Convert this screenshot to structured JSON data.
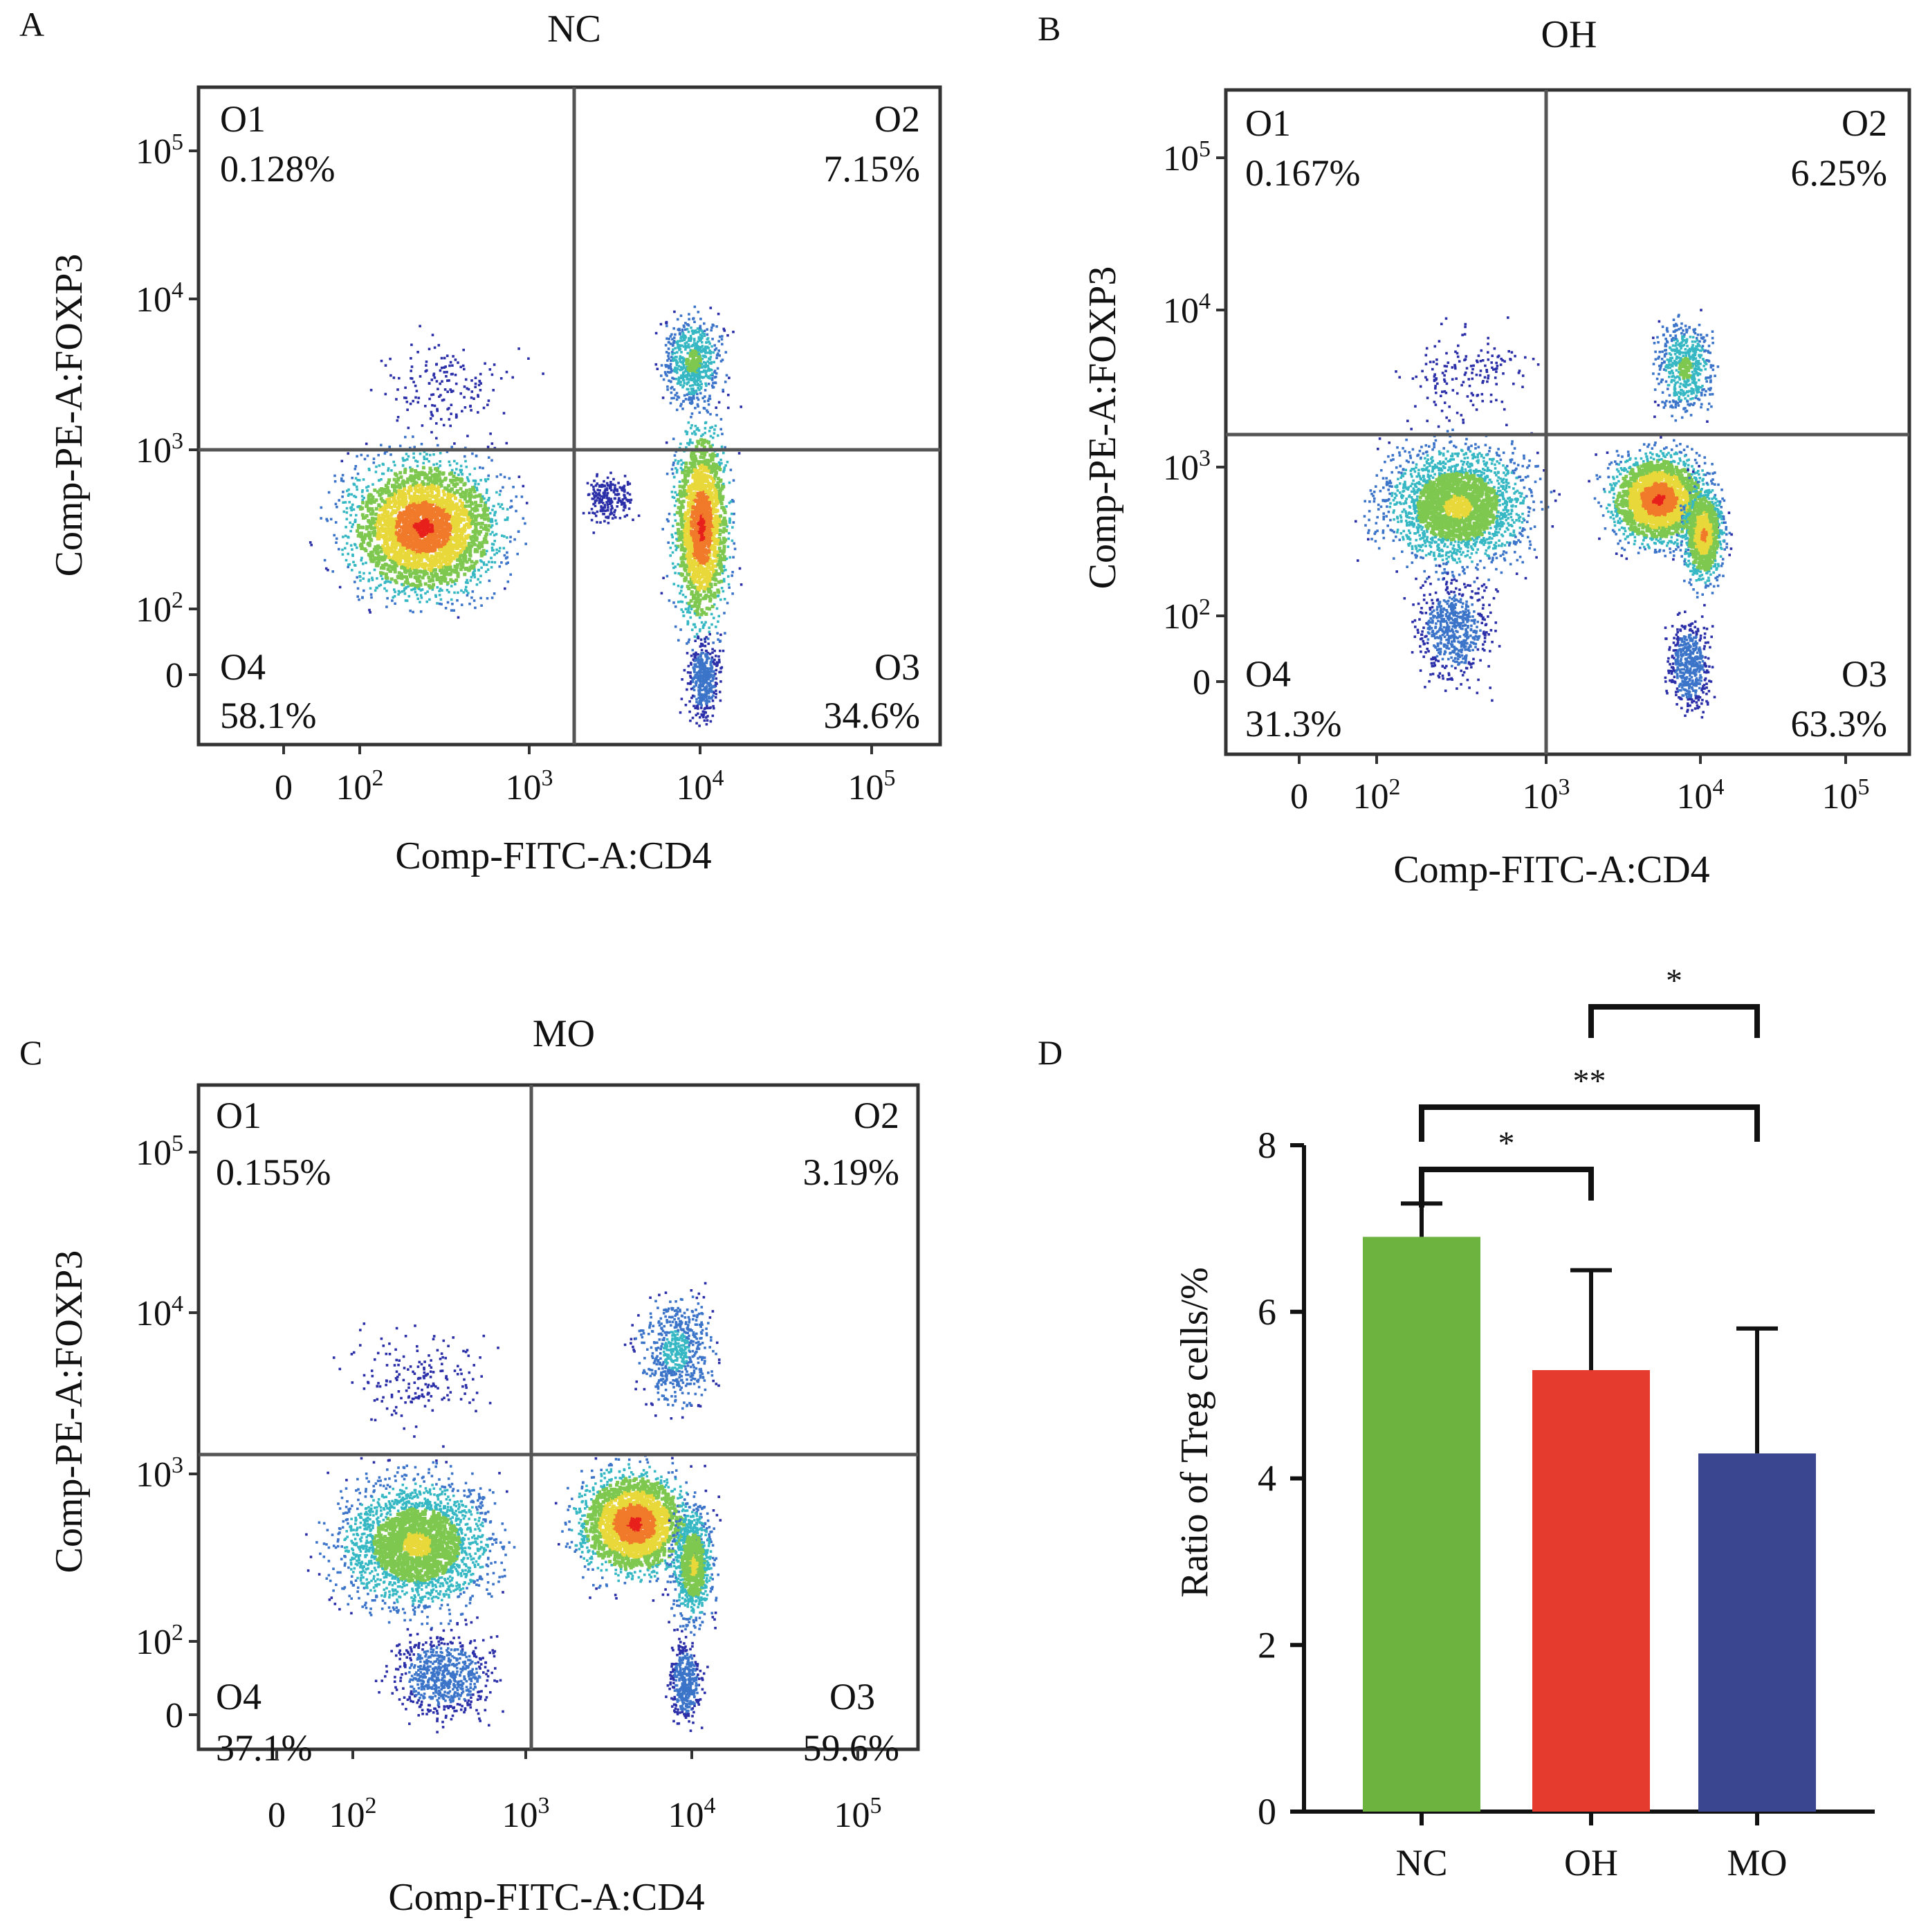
{
  "flow_panels": [
    {
      "letter": "A",
      "title": "NC",
      "ylabel": "Comp-PE-A:FOXP3",
      "xlabel": "Comp-FITC-A:CD4",
      "quadrants": [
        {
          "name": "O1",
          "value": "0.128%"
        },
        {
          "name": "O2",
          "value": "7.15%"
        },
        {
          "name": "O3",
          "value": "34.6%"
        },
        {
          "name": "O4",
          "value": "58.1%"
        }
      ]
    },
    {
      "letter": "B",
      "title": "OH",
      "ylabel": "Comp-PE-A:FOXP3",
      "xlabel": "Comp-FITC-A:CD4",
      "quadrants": [
        {
          "name": "O1",
          "value": "0.167%"
        },
        {
          "name": "O2",
          "value": "6.25%"
        },
        {
          "name": "O3",
          "value": "63.3%"
        },
        {
          "name": "O4",
          "value": "31.3%"
        }
      ]
    },
    {
      "letter": "C",
      "title": "MO",
      "ylabel": "Comp-PE-A:FOXP3",
      "xlabel": "Comp-FITC-A:CD4",
      "quadrants": [
        {
          "name": "O1",
          "value": "0.155%"
        },
        {
          "name": "O2",
          "value": "3.19%"
        },
        {
          "name": "O3",
          "value": "59.6%"
        },
        {
          "name": "O4",
          "value": "37.1%"
        }
      ]
    }
  ],
  "flow_ticks": {
    "x": [
      {
        "base": "0",
        "exp": ""
      },
      {
        "base": "10",
        "exp": "2"
      },
      {
        "base": "10",
        "exp": "3"
      },
      {
        "base": "10",
        "exp": "4"
      },
      {
        "base": "10",
        "exp": "5"
      }
    ],
    "y": [
      {
        "base": "0",
        "exp": ""
      },
      {
        "base": "10",
        "exp": "2"
      },
      {
        "base": "10",
        "exp": "3"
      },
      {
        "base": "10",
        "exp": "4"
      },
      {
        "base": "10",
        "exp": "5"
      }
    ]
  },
  "density_colors": [
    "#2b2fa8",
    "#3b74c9",
    "#36b8c4",
    "#7ec850",
    "#e8d83a",
    "#f07a2a",
    "#e8201c"
  ],
  "chart_data": {
    "type": "bar",
    "panel_letter": "D",
    "categories": [
      "NC",
      "OH",
      "MO"
    ],
    "values": [
      6.9,
      5.3,
      4.3
    ],
    "errors": [
      0.4,
      1.2,
      1.5
    ],
    "colors": [
      "#6db33f",
      "#e53a2e",
      "#3a468f"
    ],
    "ylabel": "Ratio of Treg cells/%",
    "xlabel": "",
    "ylim": [
      0,
      8
    ],
    "yticks": [
      0,
      2,
      4,
      6,
      8
    ],
    "significance": [
      {
        "from": "NC",
        "to": "OH",
        "label": "*"
      },
      {
        "from": "NC",
        "to": "MO",
        "label": "**"
      },
      {
        "from": "OH",
        "to": "MO",
        "label": "*"
      }
    ]
  }
}
